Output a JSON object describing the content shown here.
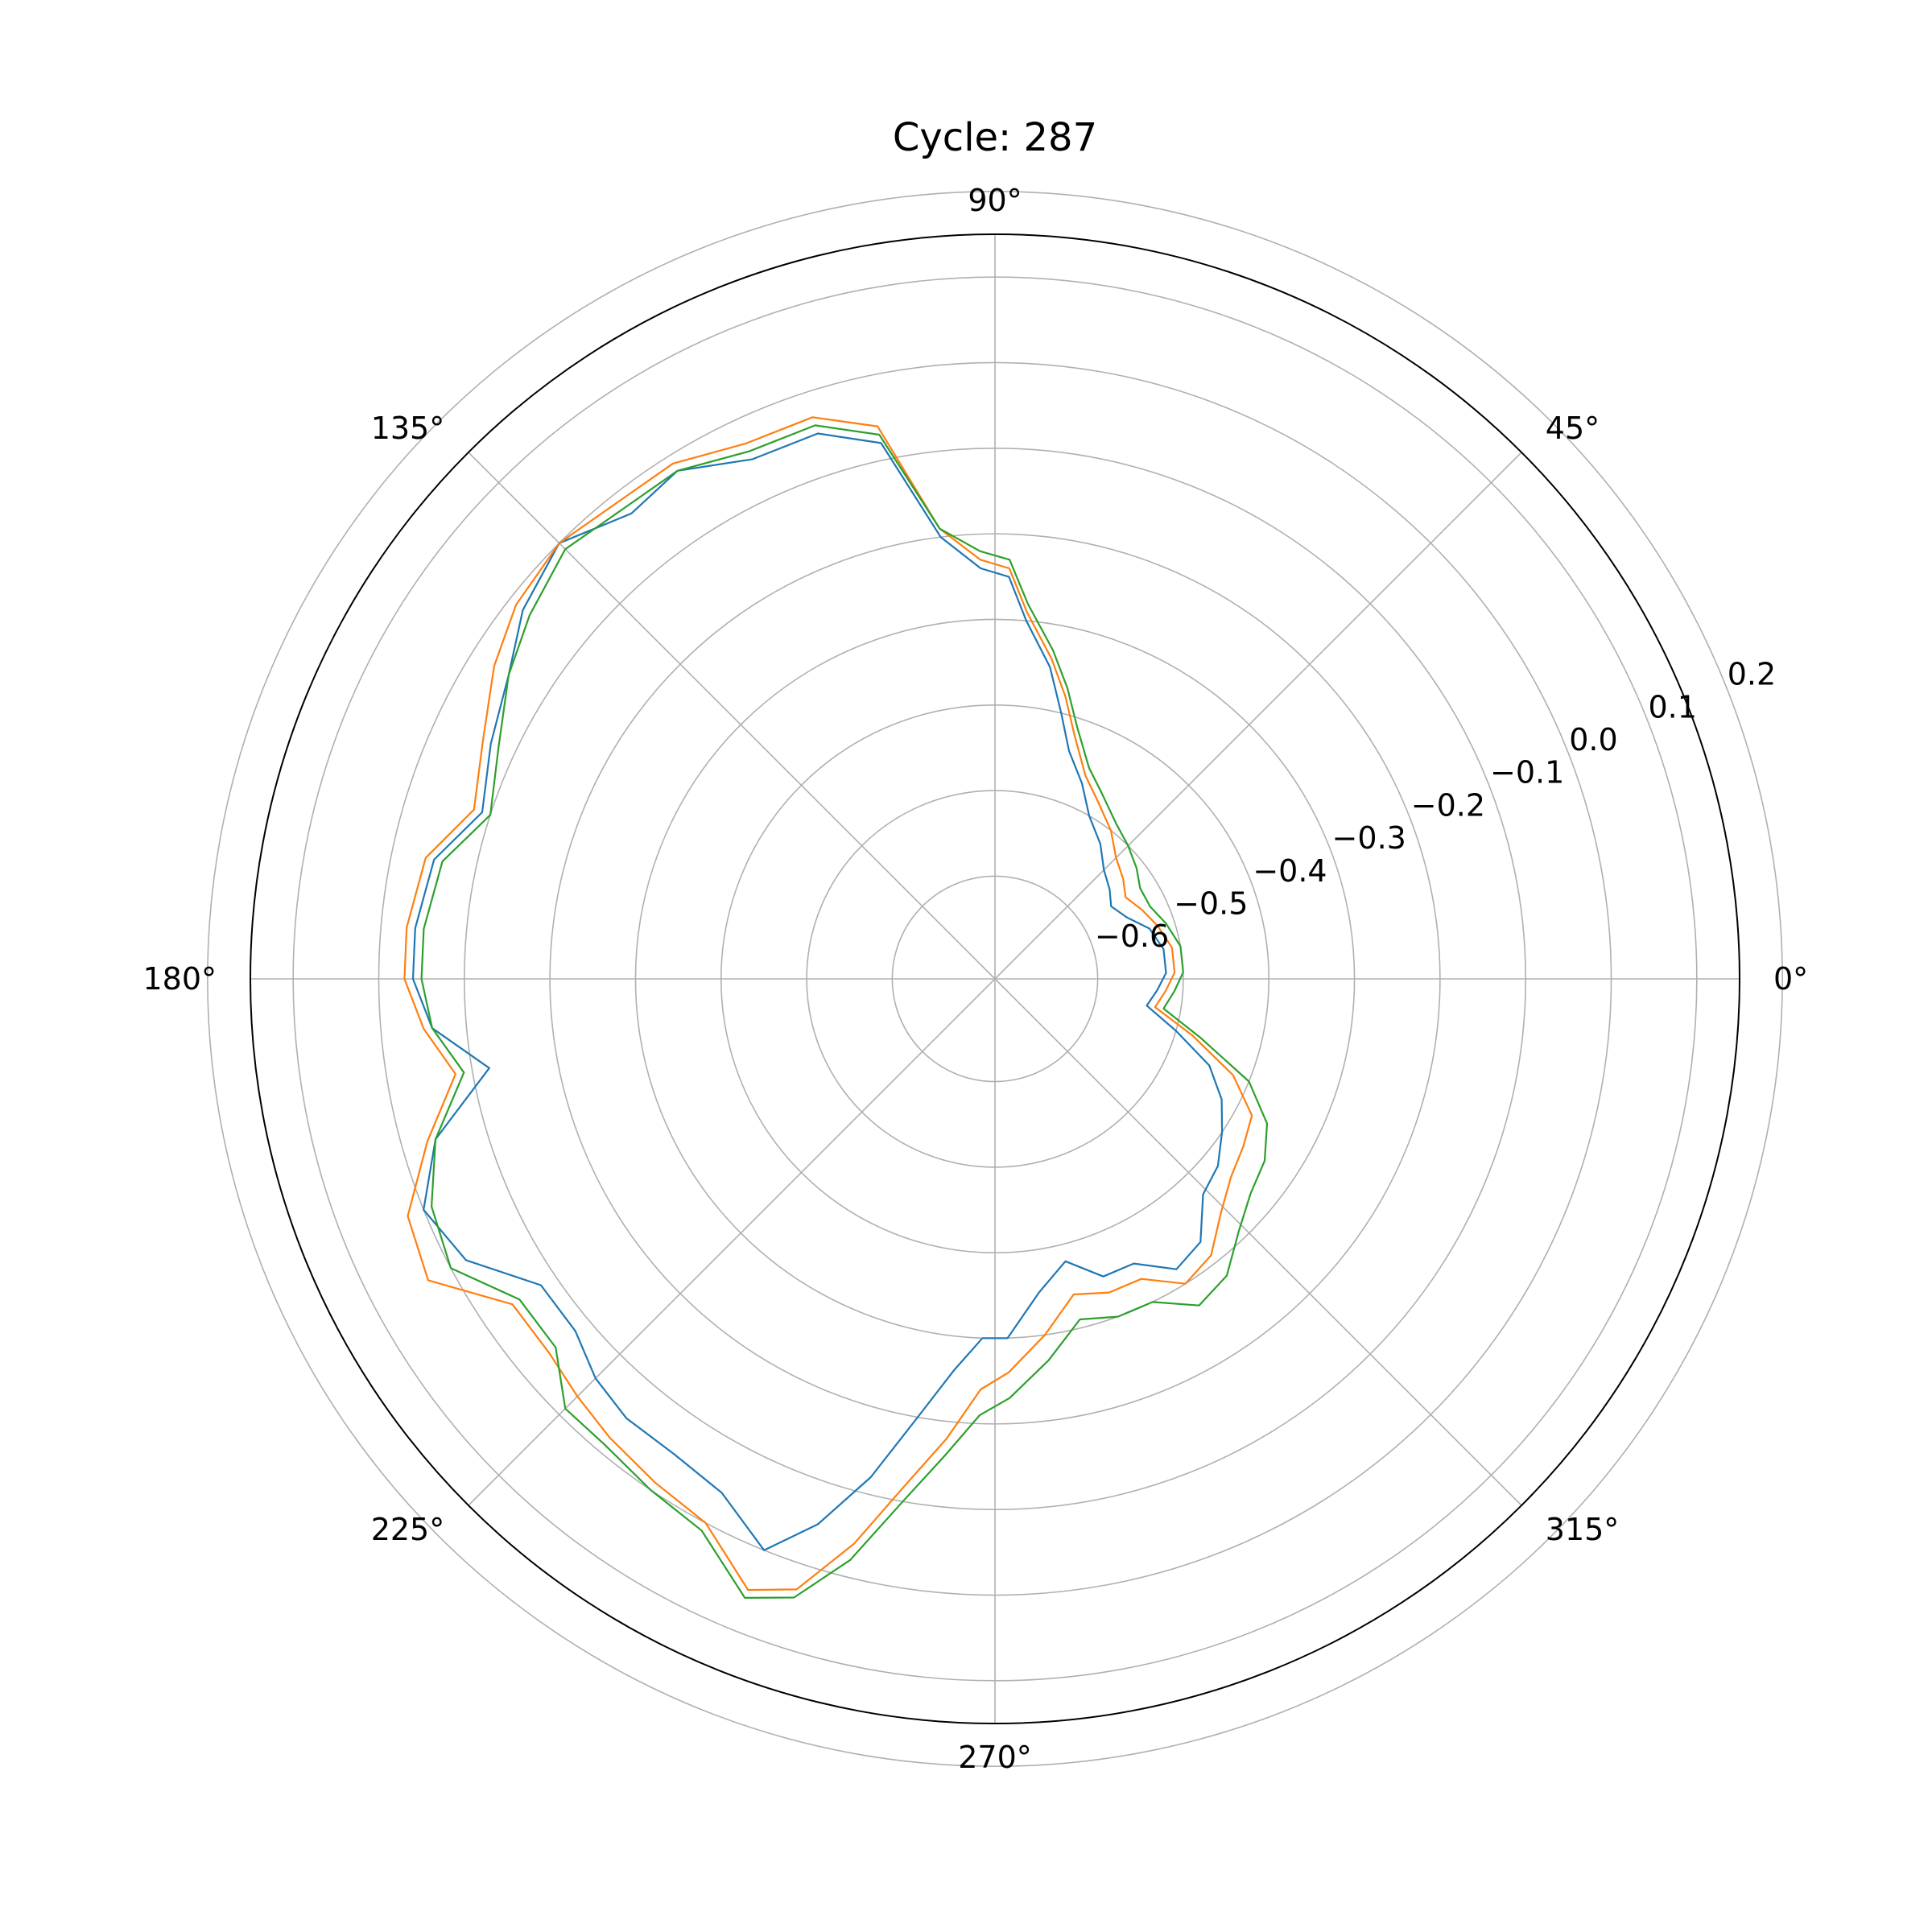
{
  "chart_data": {
    "type": "line",
    "projection": "polar",
    "title": "Cycle: 287",
    "theta_unit": "degrees",
    "theta_ticks": [
      0,
      45,
      90,
      135,
      180,
      225,
      270,
      315
    ],
    "theta_tick_labels": [
      "0°",
      "45°",
      "90°",
      "135°",
      "180°",
      "225°",
      "270°",
      "315°"
    ],
    "r_ticks": [
      -0.6,
      -0.5,
      -0.4,
      -0.3,
      -0.2,
      -0.1,
      0.0,
      0.1,
      0.2
    ],
    "r_tick_labels": [
      "−0.6",
      "−0.5",
      "−0.4",
      "−0.3",
      "−0.2",
      "−0.1",
      "0.0",
      "0.1",
      "0.2"
    ],
    "rlim": [
      -0.72,
      0.15
    ],
    "r_label_angle": 22.5,
    "grid": true,
    "legend": "none",
    "series": [
      {
        "color": "#1f77b4",
        "theta": [
          2,
          10,
          18,
          25,
          32,
          38,
          45,
          52,
          60,
          66,
          72,
          76,
          80,
          85,
          88,
          92,
          97,
          102,
          108,
          115,
          122,
          128,
          135,
          142,
          148,
          155,
          162,
          168,
          175,
          180,
          185,
          190,
          196,
          202,
          208,
          214,
          220,
          225,
          230,
          236,
          242,
          248,
          252,
          256,
          260,
          264,
          268,
          272,
          278,
          284,
          290,
          296,
          302,
          308,
          314,
          320,
          326,
          332,
          338,
          344,
          350,
          356
        ],
        "r": [
          -0.52,
          -0.52,
          -0.53,
          -0.55,
          -0.56,
          -0.55,
          -0.54,
          -0.52,
          -0.5,
          -0.47,
          -0.44,
          -0.4,
          -0.35,
          -0.3,
          -0.25,
          -0.24,
          -0.2,
          -0.08,
          -0.05,
          -0.05,
          -0.02,
          -0.03,
          0.0,
          -0.02,
          -0.05,
          -0.07,
          -0.09,
          -0.05,
          -0.04,
          -0.04,
          -0.06,
          -0.12,
          -0.04,
          0.0,
          -0.02,
          -0.08,
          -0.08,
          -0.06,
          -0.05,
          -0.05,
          -0.04,
          0.0,
          -0.05,
          -0.12,
          -0.2,
          -0.26,
          -0.3,
          -0.3,
          -0.35,
          -0.38,
          -0.35,
          -0.35,
          -0.32,
          -0.33,
          -0.37,
          -0.38,
          -0.4,
          -0.42,
          -0.45,
          -0.5,
          -0.54,
          -0.53
        ]
      },
      {
        "color": "#ff7f0e",
        "theta": [
          2,
          10,
          18,
          25,
          32,
          38,
          45,
          52,
          60,
          66,
          72,
          76,
          80,
          85,
          88,
          92,
          97,
          102,
          108,
          115,
          122,
          128,
          135,
          142,
          148,
          155,
          162,
          168,
          175,
          180,
          185,
          190,
          196,
          202,
          208,
          214,
          220,
          225,
          230,
          236,
          242,
          248,
          252,
          256,
          260,
          264,
          268,
          272,
          278,
          284,
          290,
          296,
          302,
          308,
          314,
          320,
          326,
          332,
          338,
          344,
          350,
          356
        ],
        "r": [
          -0.51,
          -0.51,
          -0.52,
          -0.53,
          -0.54,
          -0.53,
          -0.52,
          -0.5,
          -0.48,
          -0.46,
          -0.42,
          -0.38,
          -0.34,
          -0.29,
          -0.24,
          -0.23,
          -0.19,
          -0.06,
          -0.03,
          -0.03,
          -0.01,
          -0.01,
          0.0,
          -0.01,
          -0.03,
          -0.06,
          -0.08,
          -0.04,
          -0.03,
          -0.03,
          -0.05,
          -0.08,
          -0.03,
          0.02,
          0.03,
          -0.04,
          -0.04,
          -0.03,
          -0.02,
          -0.01,
          0.0,
          0.05,
          0.03,
          -0.04,
          -0.12,
          -0.18,
          -0.24,
          -0.26,
          -0.3,
          -0.34,
          -0.33,
          -0.33,
          -0.3,
          -0.31,
          -0.34,
          -0.36,
          -0.37,
          -0.38,
          -0.42,
          -0.48,
          -0.53,
          -0.52
        ]
      },
      {
        "color": "#2ca02c",
        "theta": [
          2,
          10,
          18,
          25,
          32,
          38,
          45,
          52,
          60,
          66,
          72,
          76,
          80,
          85,
          88,
          92,
          97,
          102,
          108,
          115,
          122,
          128,
          135,
          142,
          148,
          155,
          162,
          168,
          175,
          180,
          185,
          190,
          196,
          202,
          208,
          214,
          220,
          225,
          230,
          236,
          242,
          248,
          252,
          256,
          260,
          264,
          268,
          272,
          278,
          284,
          290,
          296,
          302,
          308,
          314,
          320,
          326,
          332,
          338,
          344,
          350,
          356
        ],
        "r": [
          -0.5,
          -0.5,
          -0.51,
          -0.52,
          -0.52,
          -0.51,
          -0.5,
          -0.49,
          -0.47,
          -0.45,
          -0.41,
          -0.37,
          -0.33,
          -0.28,
          -0.23,
          -0.22,
          -0.19,
          -0.07,
          -0.04,
          -0.04,
          -0.02,
          -0.02,
          -0.01,
          -0.03,
          -0.05,
          -0.08,
          -0.1,
          -0.06,
          -0.05,
          -0.05,
          -0.06,
          -0.09,
          -0.04,
          -0.01,
          0.0,
          -0.05,
          -0.05,
          -0.01,
          -0.01,
          0.0,
          0.01,
          0.06,
          0.04,
          -0.02,
          -0.1,
          -0.16,
          -0.21,
          -0.23,
          -0.27,
          -0.31,
          -0.3,
          -0.3,
          -0.27,
          -0.28,
          -0.31,
          -0.33,
          -0.34,
          -0.36,
          -0.4,
          -0.47,
          -0.52,
          -0.51
        ]
      }
    ]
  }
}
